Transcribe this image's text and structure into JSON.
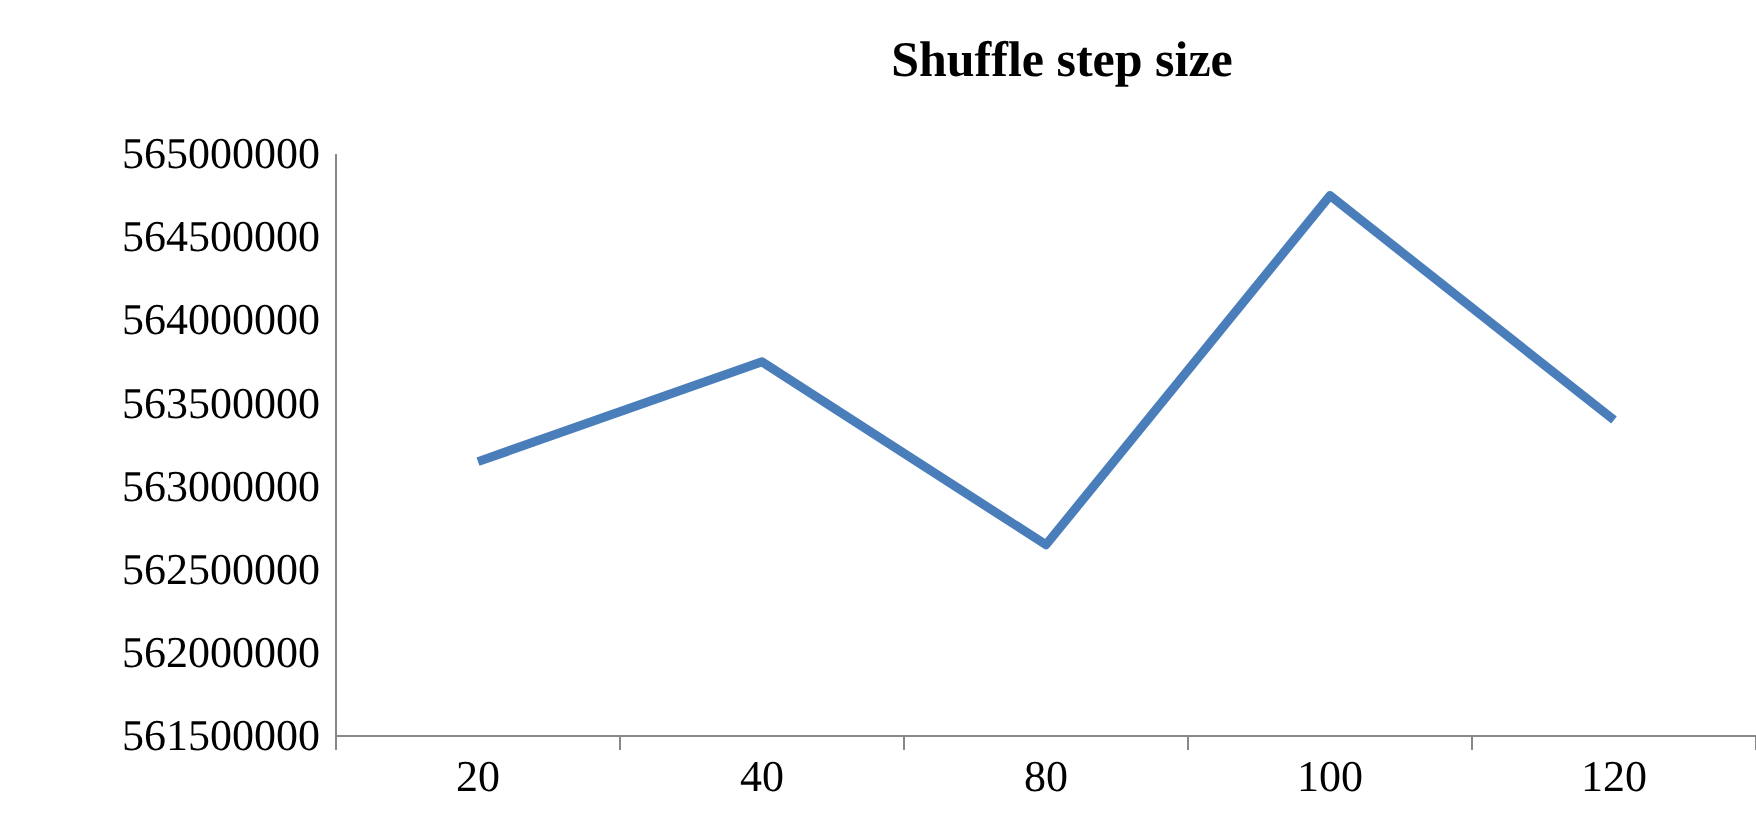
{
  "chart_data": {
    "type": "line",
    "title": "Shuffle step size",
    "categories": [
      "20",
      "40",
      "80",
      "100",
      "120"
    ],
    "series": [
      {
        "color": "#4a7ebb",
        "values": [
          563150000,
          563750000,
          562650000,
          564750000,
          563400000
        ]
      }
    ],
    "ylim": [
      561500000,
      565000000
    ],
    "yticks": [
      561500000,
      562000000,
      562500000,
      563000000,
      563500000,
      564000000,
      564500000,
      565000000
    ],
    "grid": false,
    "marker": "none",
    "line_style": "solid"
  }
}
